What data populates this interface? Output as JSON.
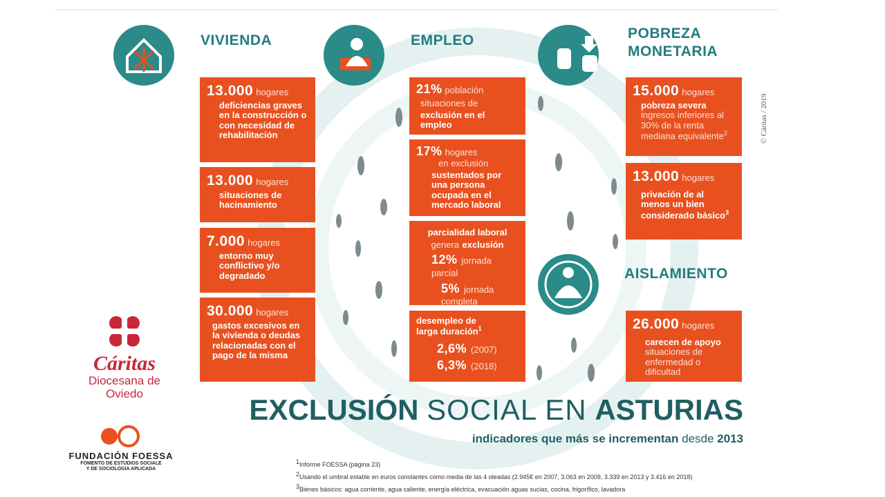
{
  "title": {
    "bold1": "EXCLUSIÓN",
    "light": "SOCIAL EN",
    "bold2": "ASTURIAS"
  },
  "subtitle": {
    "bold": "indicadores que más se incrementan",
    "light": "desde",
    "year": "2013"
  },
  "copyright": "© Cáritas / 2019",
  "vivienda": {
    "heading": "VIVIENDA",
    "boxes": [
      {
        "number": "13.000",
        "unit": "hogares",
        "text": "deficiencias graves en la construcción o con necesidad de rehabilitación"
      },
      {
        "number": "13.000",
        "unit": "hogares",
        "text": "situaciones de hacinamiento"
      },
      {
        "number": "7.000",
        "unit": "hogares",
        "text": "entorno muy conflictivo y/o degradado"
      },
      {
        "number": "30.000",
        "unit": "hogares",
        "text": "gastos excesivos en la vivienda o deudas relacionadas con el pago de la misma"
      }
    ]
  },
  "empleo": {
    "heading": "EMPLEO",
    "box1": {
      "number": "21%",
      "unit": "población",
      "light": "situaciones de",
      "text": "exclusión en el empleo"
    },
    "box2": {
      "number": "17%",
      "unit": "hogares",
      "light": "en exclusión",
      "text": "sustentados por una persona ocupada en el mercado laboral"
    },
    "box3": {
      "bold1": "parcialidad laboral",
      "light": "genera",
      "bold2": "exclusión",
      "rows": [
        {
          "number": "12%",
          "label": "jornada parcial"
        },
        {
          "number": "5%",
          "label": "jornada completa"
        }
      ]
    },
    "box4": {
      "text": "desempleo de larga duración",
      "sup": "1",
      "rows": [
        {
          "number": "2,6%",
          "label": "(2007)"
        },
        {
          "number": "6,3%",
          "label": "(2018)"
        }
      ]
    }
  },
  "pobreza": {
    "heading": "POBREZA MONETARIA",
    "boxes": [
      {
        "number": "15.000",
        "unit": "hogares",
        "text": "pobreza severa",
        "light": "ingresos inferiores al 30% de la renta mediana equivalente",
        "sup": "2"
      },
      {
        "number": "13.000",
        "unit": "hogares",
        "text": "privación de al menos un bien considerado básico",
        "sup": "3"
      }
    ]
  },
  "aislamiento": {
    "heading": "AISLAMIENTO",
    "box": {
      "number": "26.000",
      "unit": "hogares",
      "text": "carecen de apoyo",
      "light": "situaciones de enfermedad o dificultad"
    }
  },
  "caritas": {
    "name": "Cáritas",
    "line1": "Diocesana de",
    "line2": "Oviedo"
  },
  "foessa": {
    "name": "FUNDACIÓN FOESSA",
    "line1": "FOMENTO DE ESTUDIOS SOCIALE",
    "line2": "Y DE SOCIOLOGÍA APLICADA"
  },
  "footnotes": [
    {
      "mark": "1",
      "text": "Informe FOESSA (página 23)"
    },
    {
      "mark": "2",
      "text": "Usando el umbral estable en euros constantes como media de las 4 oleadas (2.945€ en 2007, 3.063 en 2009, 3.339 en 2013 y 3.416 en 2018)"
    },
    {
      "mark": "3",
      "text": "Bienes básicos: agua corriente, agua caliente, energía eléctrica, evacuación aguas sucias, cocina, frigorífico, lavadora"
    }
  ]
}
